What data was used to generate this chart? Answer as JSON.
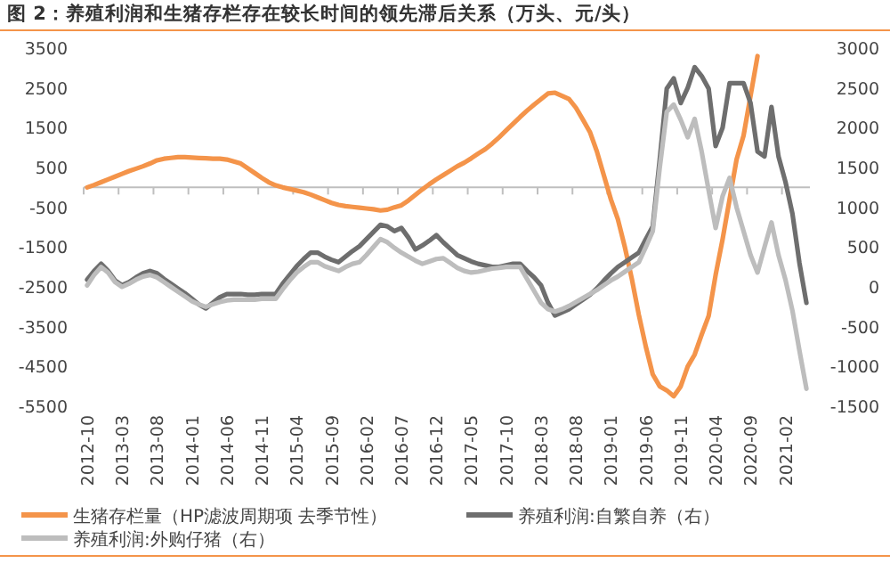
{
  "chart_data": {
    "type": "line",
    "title": "图 2：养殖利润和生猪存栏存在较长时间的领先滞后关系（万头、元/头）",
    "categories": [
      "2012-10",
      null,
      null,
      null,
      null,
      "2013-03",
      null,
      null,
      null,
      null,
      "2013-08",
      null,
      null,
      null,
      null,
      "2014-01",
      null,
      null,
      null,
      null,
      "2014-06",
      null,
      null,
      null,
      null,
      "2014-11",
      null,
      null,
      null,
      null,
      "2015-04",
      null,
      null,
      null,
      null,
      "2015-09",
      null,
      null,
      null,
      null,
      "2016-02",
      null,
      null,
      null,
      null,
      "2016-07",
      null,
      null,
      null,
      null,
      "2016-12",
      null,
      null,
      null,
      null,
      "2017-05",
      null,
      null,
      null,
      null,
      "2017-10",
      null,
      null,
      null,
      null,
      "2018-03",
      null,
      null,
      null,
      null,
      "2018-08",
      null,
      null,
      null,
      null,
      "2019-01",
      null,
      null,
      null,
      null,
      "2019-06",
      null,
      null,
      null,
      null,
      "2019-11",
      null,
      null,
      null,
      null,
      "2020-04",
      null,
      null,
      null,
      null,
      "2020-09",
      null,
      null,
      null,
      null,
      "2021-02",
      null,
      null,
      null
    ],
    "ylim": [
      -5500,
      3500
    ],
    "yticks": [
      -5500,
      -4500,
      -3500,
      -2500,
      -1500,
      -500,
      500,
      1500,
      2500,
      3500
    ],
    "y2lim": [
      -1500,
      3000
    ],
    "y2ticks": [
      -1500,
      -1000,
      -500,
      0,
      500,
      1000,
      1500,
      2000,
      2500,
      3000
    ],
    "grid": false,
    "legend": "bottom",
    "marker": "none",
    "line_style": "solid",
    "series": [
      {
        "name": "生猪存栏量（HP滤波周期项 去季节性）",
        "color": "#f4944a",
        "values": [
          0,
          60,
          130,
          200,
          270,
          340,
          410,
          470,
          530,
          600,
          680,
          720,
          740,
          760,
          760,
          750,
          740,
          730,
          720,
          720,
          700,
          650,
          600,
          480,
          360,
          240,
          130,
          50,
          0,
          -40,
          -80,
          -120,
          -180,
          -250,
          -320,
          -390,
          -440,
          -470,
          -490,
          -510,
          -530,
          -550,
          -580,
          -560,
          -500,
          -450,
          -330,
          -190,
          -50,
          80,
          200,
          310,
          420,
          530,
          620,
          730,
          850,
          960,
          1100,
          1260,
          1430,
          1600,
          1770,
          1930,
          2080,
          2220,
          2360,
          2380,
          2300,
          2220,
          2000,
          1700,
          1390,
          900,
          300,
          -300,
          -800,
          -1500,
          -2300,
          -3200,
          -4000,
          -4700,
          -5000,
          -5100,
          -5250,
          -5000,
          -4500,
          -4200,
          -3700,
          -3230,
          -2200,
          -1300,
          -300,
          700,
          1300,
          2300,
          3300,
          null,
          null,
          null,
          null,
          null,
          null,
          null
        ]
      },
      {
        "name": "养殖利润:自繁自养（右）",
        "color": "#6e6e6e",
        "axis": "y2",
        "values": [
          90,
          200,
          290,
          200,
          80,
          20,
          60,
          120,
          170,
          200,
          170,
          100,
          40,
          -20,
          -80,
          -150,
          -220,
          -270,
          -200,
          -130,
          -90,
          -90,
          -90,
          -100,
          -100,
          -90,
          -90,
          -90,
          40,
          150,
          260,
          350,
          430,
          430,
          380,
          340,
          310,
          380,
          450,
          510,
          600,
          690,
          780,
          760,
          700,
          740,
          620,
          470,
          520,
          580,
          650,
          560,
          480,
          400,
          360,
          320,
          290,
          270,
          250,
          250,
          270,
          290,
          290,
          200,
          120,
          20,
          -200,
          -360,
          -320,
          -280,
          -220,
          -160,
          -100,
          -20,
          80,
          170,
          250,
          310,
          370,
          430,
          600,
          760,
          1600,
          2490,
          2620,
          2310,
          2500,
          2760,
          2650,
          2490,
          1770,
          2000,
          2560,
          2560,
          2560,
          2310,
          1700,
          1640,
          2260,
          1640,
          1320,
          920,
          300,
          -200
        ]
      },
      {
        "name": "养殖利润:外购仔猪（右）",
        "color": "#bdbdbd",
        "axis": "y2",
        "values": [
          20,
          150,
          250,
          180,
          60,
          0,
          40,
          90,
          130,
          150,
          120,
          60,
          0,
          -60,
          -120,
          -180,
          -220,
          -250,
          -220,
          -190,
          -170,
          -160,
          -160,
          -160,
          -160,
          -150,
          -150,
          -150,
          -30,
          80,
          180,
          250,
          310,
          310,
          260,
          230,
          200,
          250,
          290,
          310,
          400,
          500,
          600,
          560,
          490,
          430,
          380,
          330,
          290,
          320,
          350,
          360,
          300,
          240,
          200,
          180,
          190,
          210,
          230,
          240,
          250,
          250,
          250,
          100,
          -50,
          -200,
          -280,
          -310,
          -280,
          -240,
          -190,
          -140,
          -90,
          -40,
          20,
          80,
          130,
          190,
          250,
          310,
          500,
          700,
          1500,
          2200,
          2290,
          2100,
          1880,
          2110,
          1700,
          1210,
          740,
          1140,
          1370,
          1000,
          700,
          400,
          180,
          500,
          810,
          400,
          90,
          -300,
          -800,
          -1280
        ]
      }
    ]
  }
}
